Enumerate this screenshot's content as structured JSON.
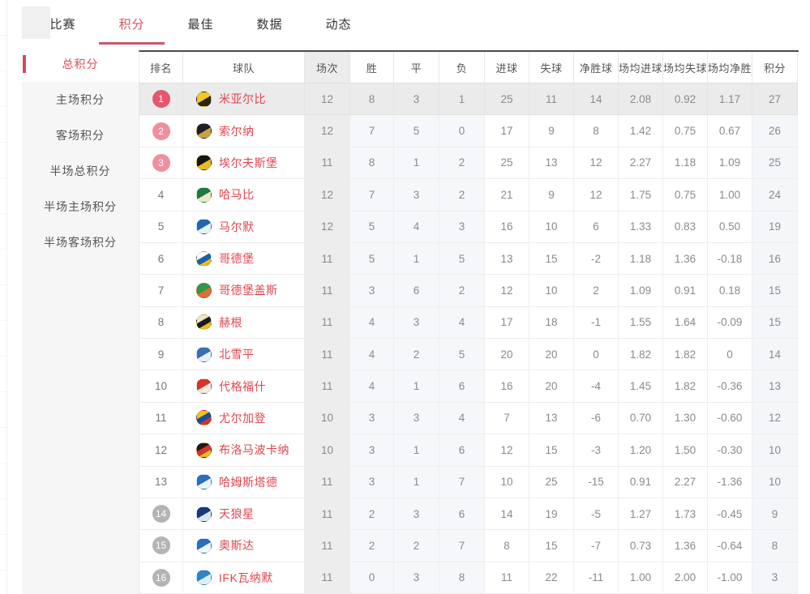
{
  "tabs": [
    {
      "key": "matches",
      "label": "比赛",
      "active": false
    },
    {
      "key": "standings",
      "label": "积分",
      "active": true
    },
    {
      "key": "best",
      "label": "最佳",
      "active": false
    },
    {
      "key": "stats",
      "label": "数据",
      "active": false
    },
    {
      "key": "news",
      "label": "动态",
      "active": false
    }
  ],
  "sidebar": {
    "items": [
      {
        "key": "total-points",
        "label": "总积分",
        "active": true
      },
      {
        "key": "home-points",
        "label": "主场积分",
        "active": false
      },
      {
        "key": "away-points",
        "label": "客场积分",
        "active": false
      },
      {
        "key": "half-total-points",
        "label": "半场总积分",
        "active": false
      },
      {
        "key": "half-home-points",
        "label": "半场主场积分",
        "active": false
      },
      {
        "key": "half-away-points",
        "label": "半场客场积分",
        "active": false
      }
    ]
  },
  "table": {
    "headers": [
      "排名",
      "球队",
      "场次",
      "胜",
      "平",
      "负",
      "进球",
      "失球",
      "净胜球",
      "场均进球",
      "场均失球",
      "场均净胜",
      "积分"
    ],
    "rows": [
      {
        "rank": 1,
        "badge": "strong",
        "highlight": true,
        "team": "米亚尔比",
        "logo_colors": [
          "#f2c91e",
          "#2a2410"
        ],
        "played": 12,
        "win": 8,
        "draw": 3,
        "loss": 1,
        "gf": 25,
        "ga": 11,
        "gd": 14,
        "avg_gf": "2.08",
        "avg_ga": "0.92",
        "avg_gd": "1.17",
        "points": 27
      },
      {
        "rank": 2,
        "badge": "light",
        "highlight": false,
        "team": "索尔纳",
        "logo_colors": [
          "#1c2026",
          "#c9a23f"
        ],
        "played": 12,
        "win": 7,
        "draw": 5,
        "loss": 0,
        "gf": 17,
        "ga": 9,
        "gd": 8,
        "avg_gf": "1.42",
        "avg_ga": "0.75",
        "avg_gd": "0.67",
        "points": 26
      },
      {
        "rank": 3,
        "badge": "light",
        "highlight": false,
        "team": "埃尔夫斯堡",
        "logo_colors": [
          "#181510",
          "#e8bd23"
        ],
        "played": 11,
        "win": 8,
        "draw": 1,
        "loss": 2,
        "gf": 25,
        "ga": 13,
        "gd": 12,
        "avg_gf": "2.27",
        "avg_ga": "1.18",
        "avg_gd": "1.09",
        "points": 25
      },
      {
        "rank": 4,
        "badge": null,
        "highlight": false,
        "team": "哈马比",
        "logo_colors": [
          "#1d7a43",
          "#efe9c8"
        ],
        "played": 12,
        "win": 7,
        "draw": 3,
        "loss": 2,
        "gf": 21,
        "ga": 9,
        "gd": 12,
        "avg_gf": "1.75",
        "avg_ga": "0.75",
        "avg_gd": "1.00",
        "points": 24
      },
      {
        "rank": 5,
        "badge": null,
        "highlight": false,
        "team": "马尔默",
        "logo_colors": [
          "#2166b1",
          "#e8f1fb"
        ],
        "played": 12,
        "win": 5,
        "draw": 4,
        "loss": 3,
        "gf": 16,
        "ga": 10,
        "gd": 6,
        "avg_gf": "1.33",
        "avg_ga": "0.83",
        "avg_gd": "0.50",
        "points": 19
      },
      {
        "rank": 6,
        "badge": null,
        "highlight": false,
        "team": "哥德堡",
        "logo_colors": [
          "#ffffff",
          "#1b5fa8",
          "#e8bd23"
        ],
        "played": 11,
        "win": 5,
        "draw": 1,
        "loss": 5,
        "gf": 13,
        "ga": 15,
        "gd": -2,
        "avg_gf": "1.18",
        "avg_ga": "1.36",
        "avg_gd": "-0.18",
        "points": 16
      },
      {
        "rank": 7,
        "badge": null,
        "highlight": false,
        "team": "哥德堡盖斯",
        "logo_colors": [
          "#2c9a4b",
          "#df6f35"
        ],
        "played": 11,
        "win": 3,
        "draw": 6,
        "loss": 2,
        "gf": 12,
        "ga": 10,
        "gd": 2,
        "avg_gf": "1.09",
        "avg_ga": "0.91",
        "avg_gd": "0.18",
        "points": 15
      },
      {
        "rank": 8,
        "badge": null,
        "highlight": false,
        "team": "赫根",
        "logo_colors": [
          "#efe6c9",
          "#1b1b1b",
          "#e8bd23"
        ],
        "played": 11,
        "win": 4,
        "draw": 3,
        "loss": 4,
        "gf": 17,
        "ga": 18,
        "gd": -1,
        "avg_gf": "1.55",
        "avg_ga": "1.64",
        "avg_gd": "-0.09",
        "points": 15
      },
      {
        "rank": 9,
        "badge": null,
        "highlight": false,
        "team": "北雪平",
        "logo_colors": [
          "#3a6fb5",
          "#e9f0f9"
        ],
        "played": 11,
        "win": 4,
        "draw": 2,
        "loss": 5,
        "gf": 20,
        "ga": 20,
        "gd": 0,
        "avg_gf": "1.82",
        "avg_ga": "1.82",
        "avg_gd": "0",
        "points": 14
      },
      {
        "rank": 10,
        "badge": null,
        "highlight": false,
        "team": "代格福什",
        "logo_colors": [
          "#d8342c",
          "#f6e9e2"
        ],
        "played": 11,
        "win": 4,
        "draw": 1,
        "loss": 6,
        "gf": 16,
        "ga": 20,
        "gd": -4,
        "avg_gf": "1.45",
        "avg_ga": "1.82",
        "avg_gd": "-0.36",
        "points": 13
      },
      {
        "rank": 11,
        "badge": null,
        "highlight": false,
        "team": "尤尔加登",
        "logo_colors": [
          "#efc31e",
          "#1b4f9e",
          "#d8342c"
        ],
        "played": 10,
        "win": 3,
        "draw": 3,
        "loss": 4,
        "gf": 7,
        "ga": 13,
        "gd": -6,
        "avg_gf": "0.70",
        "avg_ga": "1.30",
        "avg_gd": "-0.60",
        "points": 12
      },
      {
        "rank": 12,
        "badge": null,
        "highlight": false,
        "team": "布洛马波卡纳",
        "logo_colors": [
          "#1b1b1b",
          "#d8342c",
          "#e8bd23"
        ],
        "played": 10,
        "win": 3,
        "draw": 1,
        "loss": 6,
        "gf": 12,
        "ga": 15,
        "gd": -3,
        "avg_gf": "1.20",
        "avg_ga": "1.50",
        "avg_gd": "-0.30",
        "points": 10
      },
      {
        "rank": 13,
        "badge": null,
        "highlight": false,
        "team": "哈姆斯塔德",
        "logo_colors": [
          "#2a6fc0",
          "#eef4fb"
        ],
        "played": 11,
        "win": 3,
        "draw": 1,
        "loss": 7,
        "gf": 10,
        "ga": 25,
        "gd": -15,
        "avg_gf": "0.91",
        "avg_ga": "2.27",
        "avg_gd": "-1.36",
        "points": 10
      },
      {
        "rank": 14,
        "badge": "gray",
        "highlight": false,
        "team": "天狼星",
        "logo_colors": [
          "#14397c",
          "#dbe5f4"
        ],
        "played": 11,
        "win": 2,
        "draw": 3,
        "loss": 6,
        "gf": 14,
        "ga": 19,
        "gd": -5,
        "avg_gf": "1.27",
        "avg_ga": "1.73",
        "avg_gd": "-0.45",
        "points": 9
      },
      {
        "rank": 15,
        "badge": "gray",
        "highlight": false,
        "team": "奥斯达",
        "logo_colors": [
          "#2a6fc0",
          "#f2f7fc"
        ],
        "played": 11,
        "win": 2,
        "draw": 2,
        "loss": 7,
        "gf": 8,
        "ga": 15,
        "gd": -7,
        "avg_gf": "0.73",
        "avg_ga": "1.36",
        "avg_gd": "-0.64",
        "points": 8
      },
      {
        "rank": 16,
        "badge": "gray",
        "highlight": false,
        "team": "IFK瓦纳默",
        "logo_colors": [
          "#2e86c8",
          "#ddeffa"
        ],
        "played": 11,
        "win": 0,
        "draw": 3,
        "loss": 8,
        "gf": 11,
        "ga": 22,
        "gd": -11,
        "avg_gf": "1.00",
        "avg_ga": "2.00",
        "avg_gd": "-1.00",
        "points": 3
      }
    ]
  },
  "colors": {
    "accent_red": "#e0454e",
    "tab_active": "#d8515f",
    "tab_underline": "#c9596b",
    "sidebar_active": "#e34c55",
    "badge_top1": "#e5576c",
    "badge_top23": "#ee8fa0",
    "badge_relegation": "#b4b4b4",
    "row_highlight": "#ebebeb",
    "header_band": "#ececec"
  }
}
